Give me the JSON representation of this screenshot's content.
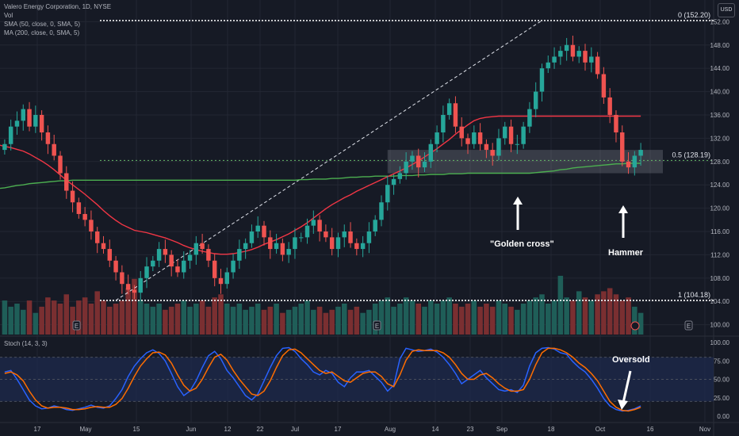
{
  "legend": {
    "title": "Valero Energy Corporation, 1D, NYSE",
    "vol": "Vol",
    "sma": "SMA (50, close, 0, SMA, 5)",
    "ma": "MA (200, close, 0, SMA, 5)",
    "stoch": "Stoch (14, 3, 3)",
    "currency": "USD"
  },
  "annotations": {
    "golden_cross": "\"Golden cross\"",
    "hammer": "Hammer",
    "oversold": "Oversold"
  },
  "fib": {
    "top": "0 (152.20)",
    "mid": "0.5 (128.19)",
    "bottom": "1 (104.18)"
  },
  "colors": {
    "background": "#161a25",
    "up": "#26a69a",
    "down": "#ef5350",
    "sma50": "#f23645",
    "ma200": "#4caf50",
    "stoch_k": "#2962ff",
    "stoch_d": "#ff6d00",
    "zone": "#9598a1"
  },
  "chart_data": [
    {
      "type": "candlestick",
      "title": "Valero Energy Corporation, 1D, NYSE",
      "ylim": [
        99,
        153
      ],
      "y_ticks": [
        100,
        104,
        108,
        112,
        116,
        120,
        124,
        128,
        132,
        136,
        140,
        144,
        148,
        152
      ],
      "x_tick_labels": [
        "17",
        "May",
        "15",
        "Jun",
        "12",
        "22",
        "Jul",
        "17",
        "Aug",
        "14",
        "23",
        "Sep",
        "18",
        "Oct",
        "16",
        "Nov"
      ],
      "close": [
        131,
        134,
        135,
        137,
        134,
        136,
        133,
        131,
        129,
        126,
        123,
        121,
        119,
        118,
        116,
        114,
        113,
        111,
        109,
        107,
        106,
        105.5,
        108,
        110,
        111,
        113,
        112,
        110,
        109,
        111,
        112,
        114,
        113,
        111,
        108,
        107,
        109,
        111,
        113,
        114,
        116,
        117,
        115,
        113,
        114,
        112,
        113,
        115,
        115,
        117,
        118,
        116,
        115,
        113,
        115,
        116,
        114,
        113,
        114,
        116,
        118,
        121,
        124,
        125,
        126,
        128,
        129,
        127,
        128,
        131,
        133,
        136,
        138,
        134,
        132,
        131,
        133,
        131,
        130,
        129,
        132,
        134,
        131,
        131,
        134,
        137,
        140,
        144,
        145,
        146,
        147,
        148,
        146,
        147,
        145,
        146,
        143,
        139,
        136,
        133,
        128,
        127,
        129,
        130
      ],
      "open": [
        130,
        131,
        134,
        135,
        137,
        134,
        136,
        133,
        131,
        129,
        126,
        123,
        121,
        119,
        118,
        116,
        114,
        113,
        111,
        109,
        107,
        106,
        105.5,
        108,
        110,
        111,
        113,
        112,
        110,
        109,
        111,
        112,
        114,
        113,
        111,
        108,
        107,
        109,
        111,
        113,
        114,
        116,
        117,
        115,
        113,
        114,
        112,
        113,
        115,
        115,
        117,
        118,
        116,
        115,
        113,
        115,
        116,
        114,
        113,
        114,
        116,
        118,
        121,
        124,
        125,
        126,
        128,
        129,
        127,
        128,
        131,
        133,
        136,
        138,
        134,
        132,
        131,
        133,
        131,
        130,
        129,
        132,
        134,
        131,
        131,
        134,
        137,
        140,
        144,
        145,
        146,
        147,
        148,
        146,
        147,
        145,
        146,
        143,
        139,
        136,
        133,
        128,
        127,
        129
      ],
      "sma50": [
        130.6,
        130.4,
        130.1,
        129.8,
        129.3,
        128.7,
        128.1,
        127.4,
        126.6,
        125.7,
        124.8,
        124,
        123.2,
        122.4,
        121.5,
        120.6,
        119.6,
        118.7,
        117.9,
        117.2,
        116.7,
        116.2,
        116,
        115.8,
        115.5,
        115.2,
        114.9,
        114.5,
        114.1,
        113.6,
        113.2,
        112.9,
        112.6,
        112.4,
        112.2,
        112.1,
        112.1,
        112.2,
        112.4,
        112.6,
        112.9,
        113.3,
        113.8,
        114.2,
        114.6,
        115.1,
        115.6,
        116.2,
        116.8,
        117.5,
        118.3,
        119.1,
        119.9,
        120.6,
        121.2,
        121.8,
        122.3,
        122.9,
        123.4,
        123.9,
        124.4,
        124.9,
        125.4,
        125.9,
        126.4,
        126.9,
        127.5,
        128.1,
        128.8,
        129.5,
        130.2,
        131,
        131.8,
        132.7,
        133.5,
        134.3,
        135,
        135.4,
        135.6,
        135.7,
        135.8,
        135.8,
        135.8,
        135.8,
        135.8,
        135.8,
        135.8,
        135.8,
        135.8,
        135.8,
        135.8,
        135.8,
        135.8,
        135.8,
        135.8,
        135.8,
        135.8,
        135.8,
        135.8,
        135.8,
        135.8,
        135.8,
        135.8,
        135.8
      ],
      "ma200": [
        123.5,
        123.7,
        123.9,
        124,
        124.2,
        124.3,
        124.4,
        124.5,
        124.6,
        124.7,
        124.7,
        124.8,
        124.8,
        124.8,
        124.8,
        124.8,
        124.8,
        124.8,
        124.8,
        124.8,
        124.8,
        124.8,
        124.8,
        124.8,
        124.8,
        124.8,
        124.8,
        124.8,
        124.8,
        124.8,
        124.8,
        124.8,
        124.8,
        124.8,
        124.8,
        124.8,
        124.8,
        124.8,
        124.8,
        124.8,
        124.8,
        124.8,
        124.8,
        124.8,
        124.8,
        124.8,
        124.8,
        124.8,
        124.9,
        124.9,
        125,
        125,
        125,
        125.1,
        125.1,
        125.2,
        125.3,
        125.3,
        125.4,
        125.4,
        125.5,
        125.5,
        125.5,
        125.5,
        125.6,
        125.6,
        125.6,
        125.7,
        125.7,
        125.8,
        125.8,
        125.8,
        125.9,
        125.9,
        125.9,
        126,
        126,
        126,
        126,
        126,
        126,
        126,
        126,
        126,
        126,
        126,
        126.1,
        126.2,
        126.3,
        126.4,
        126.6,
        126.7,
        126.9,
        127,
        127.1,
        127.2,
        127.3,
        127.4,
        127.5,
        127.6,
        127.6,
        127.7,
        127.7,
        127.7
      ],
      "volume": [
        0.55,
        0.45,
        0.5,
        0.4,
        0.55,
        0.35,
        0.45,
        0.6,
        0.55,
        0.5,
        0.65,
        0.45,
        0.55,
        0.6,
        0.5,
        0.7,
        0.55,
        0.45,
        0.5,
        0.55,
        0.75,
        0.9,
        0.55,
        0.5,
        0.45,
        0.5,
        0.4,
        0.45,
        0.5,
        0.55,
        0.45,
        0.5,
        0.55,
        0.45,
        0.6,
        0.65,
        0.5,
        0.45,
        0.5,
        0.4,
        0.45,
        0.5,
        0.4,
        0.45,
        0.5,
        0.35,
        0.4,
        0.45,
        0.5,
        0.55,
        0.4,
        0.45,
        0.35,
        0.4,
        0.45,
        0.5,
        0.4,
        0.45,
        0.35,
        0.4,
        0.5,
        0.55,
        0.6,
        0.45,
        0.5,
        0.6,
        0.55,
        0.5,
        0.45,
        0.55,
        0.5,
        0.55,
        0.6,
        0.5,
        0.45,
        0.5,
        0.55,
        0.45,
        0.5,
        0.45,
        0.55,
        0.5,
        0.45,
        0.4,
        0.5,
        0.55,
        0.6,
        0.65,
        0.5,
        0.55,
        0.95,
        0.6,
        0.55,
        0.7,
        0.6,
        0.55,
        0.65,
        0.7,
        0.75,
        0.65,
        0.55,
        0.6,
        0.45,
        0.35
      ],
      "fib_levels": [
        {
          "ratio": 0,
          "price": 152.2
        },
        {
          "ratio": 0.5,
          "price": 128.19
        },
        {
          "ratio": 1,
          "price": 104.18
        }
      ],
      "support_zone": [
        126,
        130
      ]
    },
    {
      "type": "line",
      "title": "Stoch (14, 3, 3)",
      "ylim": [
        0,
        100
      ],
      "y_ticks": [
        0,
        25,
        50,
        75,
        100
      ],
      "bands": [
        20,
        80
      ],
      "series": [
        {
          "values": [
            60,
            62,
            50,
            36,
            22,
            14,
            10,
            11,
            14,
            12,
            9,
            8,
            10,
            12,
            15,
            12,
            11,
            14,
            24,
            36,
            54,
            68,
            78,
            86,
            90,
            85,
            75,
            58,
            40,
            28,
            34,
            48,
            66,
            82,
            88,
            78,
            62,
            52,
            40,
            28,
            22,
            30,
            48,
            66,
            82,
            92,
            93,
            88,
            78,
            70,
            60,
            56,
            62,
            58,
            46,
            40,
            52,
            60,
            60,
            62,
            54,
            46,
            34,
            42,
            78,
            92,
            90,
            88,
            89,
            91,
            87,
            80,
            70,
            58,
            44,
            50,
            56,
            62,
            52,
            44,
            36,
            34,
            36,
            32,
            42,
            68,
            86,
            92,
            93,
            91,
            86,
            84,
            74,
            66,
            60,
            50,
            38,
            24,
            14,
            9,
            7,
            8,
            10,
            14
          ]
        },
        {
          "values": [
            58,
            60,
            56,
            48,
            34,
            22,
            14,
            11,
            12,
            12,
            11,
            9,
            9,
            10,
            12,
            13,
            12,
            12,
            16,
            24,
            38,
            54,
            68,
            78,
            86,
            87,
            83,
            72,
            56,
            42,
            34,
            38,
            50,
            66,
            80,
            84,
            76,
            62,
            50,
            40,
            30,
            28,
            34,
            48,
            66,
            82,
            90,
            91,
            86,
            78,
            70,
            62,
            58,
            60,
            54,
            48,
            46,
            52,
            58,
            60,
            60,
            54,
            44,
            40,
            56,
            76,
            88,
            90,
            89,
            89,
            89,
            86,
            80,
            70,
            58,
            50,
            50,
            56,
            58,
            52,
            44,
            38,
            34,
            34,
            36,
            50,
            70,
            86,
            92,
            92,
            90,
            86,
            80,
            72,
            66,
            58,
            48,
            34,
            20,
            12,
            8,
            7,
            9,
            12
          ]
        }
      ]
    }
  ]
}
